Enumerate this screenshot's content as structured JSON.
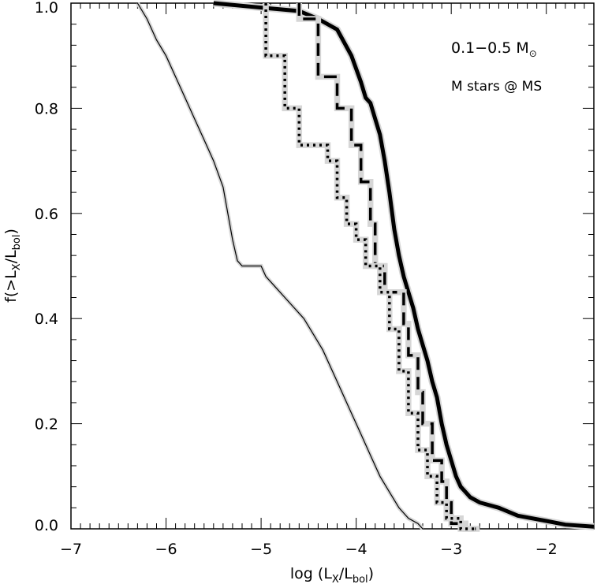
{
  "chart_data": {
    "type": "line",
    "xlabel": {
      "main": "log (L",
      "sub1": "X",
      "mid": "/L",
      "sub2": "bol",
      "end": ")"
    },
    "ylabel": {
      "main": "f(>L",
      "sub1": "X",
      "mid": "/L",
      "sub2": "bol",
      "end": ")"
    },
    "xlim": [
      -7,
      -1.5
    ],
    "ylim": [
      0,
      1
    ],
    "x_ticks": [
      -7,
      -6,
      -5,
      -4,
      -3,
      -2
    ],
    "x_tick_labels": [
      "−7",
      "−6",
      "−5",
      "−4",
      "−3",
      "−2"
    ],
    "y_ticks": [
      0,
      0.2,
      0.4,
      0.6,
      0.8,
      1.0
    ],
    "y_tick_labels": [
      "0.0",
      "0.2",
      "0.4",
      "0.6",
      "0.8",
      "1.0"
    ],
    "x_minor_step": 0.1,
    "y_minor_step": 0.04,
    "grid": false,
    "annotations": {
      "mass_range": "0.1−0.5 M",
      "sun_symbol": "⊙",
      "stage": "M stars @ MS"
    },
    "series": [
      {
        "style": "thick-solid",
        "points": [
          [
            -5.5,
            1.0
          ],
          [
            -4.9,
            0.99
          ],
          [
            -4.6,
            0.985
          ],
          [
            -4.4,
            0.97
          ],
          [
            -4.2,
            0.95
          ],
          [
            -4.05,
            0.9
          ],
          [
            -3.95,
            0.85
          ],
          [
            -3.9,
            0.82
          ],
          [
            -3.85,
            0.81
          ],
          [
            -3.8,
            0.78
          ],
          [
            -3.75,
            0.75
          ],
          [
            -3.7,
            0.7
          ],
          [
            -3.65,
            0.64
          ],
          [
            -3.6,
            0.57
          ],
          [
            -3.55,
            0.52
          ],
          [
            -3.5,
            0.48
          ],
          [
            -3.45,
            0.45
          ],
          [
            -3.4,
            0.42
          ],
          [
            -3.35,
            0.38
          ],
          [
            -3.3,
            0.35
          ],
          [
            -3.25,
            0.32
          ],
          [
            -3.2,
            0.28
          ],
          [
            -3.15,
            0.25
          ],
          [
            -3.1,
            0.2
          ],
          [
            -3.05,
            0.16
          ],
          [
            -3.0,
            0.13
          ],
          [
            -2.95,
            0.1
          ],
          [
            -2.9,
            0.08
          ],
          [
            -2.85,
            0.07
          ],
          [
            -2.8,
            0.06
          ],
          [
            -2.7,
            0.05
          ],
          [
            -2.5,
            0.04
          ],
          [
            -2.3,
            0.025
          ],
          [
            -2.0,
            0.015
          ],
          [
            -1.8,
            0.008
          ],
          [
            -1.5,
            0.004
          ]
        ]
      },
      {
        "style": "dashed",
        "points": [
          [
            -4.6,
            1.0
          ],
          [
            -4.6,
            0.97
          ],
          [
            -4.4,
            0.97
          ],
          [
            -4.4,
            0.86
          ],
          [
            -4.2,
            0.86
          ],
          [
            -4.2,
            0.8
          ],
          [
            -4.05,
            0.8
          ],
          [
            -4.05,
            0.73
          ],
          [
            -3.95,
            0.73
          ],
          [
            -3.95,
            0.66
          ],
          [
            -3.85,
            0.66
          ],
          [
            -3.85,
            0.58
          ],
          [
            -3.8,
            0.58
          ],
          [
            -3.8,
            0.5
          ],
          [
            -3.7,
            0.5
          ],
          [
            -3.7,
            0.45
          ],
          [
            -3.5,
            0.45
          ],
          [
            -3.5,
            0.39
          ],
          [
            -3.45,
            0.39
          ],
          [
            -3.45,
            0.33
          ],
          [
            -3.35,
            0.33
          ],
          [
            -3.35,
            0.26
          ],
          [
            -3.3,
            0.26
          ],
          [
            -3.3,
            0.2
          ],
          [
            -3.2,
            0.2
          ],
          [
            -3.2,
            0.13
          ],
          [
            -3.1,
            0.13
          ],
          [
            -3.1,
            0.09
          ],
          [
            -3.05,
            0.09
          ],
          [
            -3.05,
            0.05
          ],
          [
            -3.0,
            0.05
          ],
          [
            -3.0,
            0.01
          ],
          [
            -2.85,
            0.01
          ],
          [
            -2.85,
            0.0
          ],
          [
            -2.7,
            0.0
          ]
        ]
      },
      {
        "style": "dotted",
        "points": [
          [
            -4.95,
            1.0
          ],
          [
            -4.95,
            0.9
          ],
          [
            -4.75,
            0.9
          ],
          [
            -4.75,
            0.8
          ],
          [
            -4.6,
            0.8
          ],
          [
            -4.6,
            0.73
          ],
          [
            -4.3,
            0.73
          ],
          [
            -4.3,
            0.7
          ],
          [
            -4.2,
            0.7
          ],
          [
            -4.2,
            0.63
          ],
          [
            -4.1,
            0.63
          ],
          [
            -4.1,
            0.58
          ],
          [
            -4.0,
            0.58
          ],
          [
            -4.0,
            0.55
          ],
          [
            -3.9,
            0.55
          ],
          [
            -3.9,
            0.5
          ],
          [
            -3.75,
            0.5
          ],
          [
            -3.75,
            0.45
          ],
          [
            -3.65,
            0.45
          ],
          [
            -3.65,
            0.38
          ],
          [
            -3.55,
            0.38
          ],
          [
            -3.55,
            0.3
          ],
          [
            -3.45,
            0.3
          ],
          [
            -3.45,
            0.22
          ],
          [
            -3.35,
            0.22
          ],
          [
            -3.35,
            0.15
          ],
          [
            -3.25,
            0.15
          ],
          [
            -3.25,
            0.1
          ],
          [
            -3.15,
            0.1
          ],
          [
            -3.15,
            0.05
          ],
          [
            -3.05,
            0.05
          ],
          [
            -3.05,
            0.02
          ],
          [
            -2.9,
            0.02
          ],
          [
            -2.9,
            0.0
          ],
          [
            -2.75,
            0.0
          ]
        ]
      },
      {
        "style": "thin-solid",
        "points": [
          [
            -6.3,
            1.0
          ],
          [
            -6.2,
            0.97
          ],
          [
            -6.1,
            0.93
          ],
          [
            -6.0,
            0.9
          ],
          [
            -5.9,
            0.86
          ],
          [
            -5.8,
            0.82
          ],
          [
            -5.7,
            0.78
          ],
          [
            -5.6,
            0.74
          ],
          [
            -5.5,
            0.7
          ],
          [
            -5.4,
            0.65
          ],
          [
            -5.35,
            0.6
          ],
          [
            -5.3,
            0.55
          ],
          [
            -5.25,
            0.51
          ],
          [
            -5.2,
            0.5
          ],
          [
            -5.0,
            0.5
          ],
          [
            -4.95,
            0.48
          ],
          [
            -4.85,
            0.46
          ],
          [
            -4.75,
            0.44
          ],
          [
            -4.65,
            0.42
          ],
          [
            -4.55,
            0.4
          ],
          [
            -4.45,
            0.37
          ],
          [
            -4.35,
            0.34
          ],
          [
            -4.25,
            0.3
          ],
          [
            -4.15,
            0.26
          ],
          [
            -4.05,
            0.22
          ],
          [
            -3.95,
            0.18
          ],
          [
            -3.85,
            0.14
          ],
          [
            -3.75,
            0.1
          ],
          [
            -3.65,
            0.07
          ],
          [
            -3.55,
            0.04
          ],
          [
            -3.45,
            0.02
          ],
          [
            -3.35,
            0.01
          ],
          [
            -3.3,
            0.0
          ]
        ]
      }
    ]
  }
}
